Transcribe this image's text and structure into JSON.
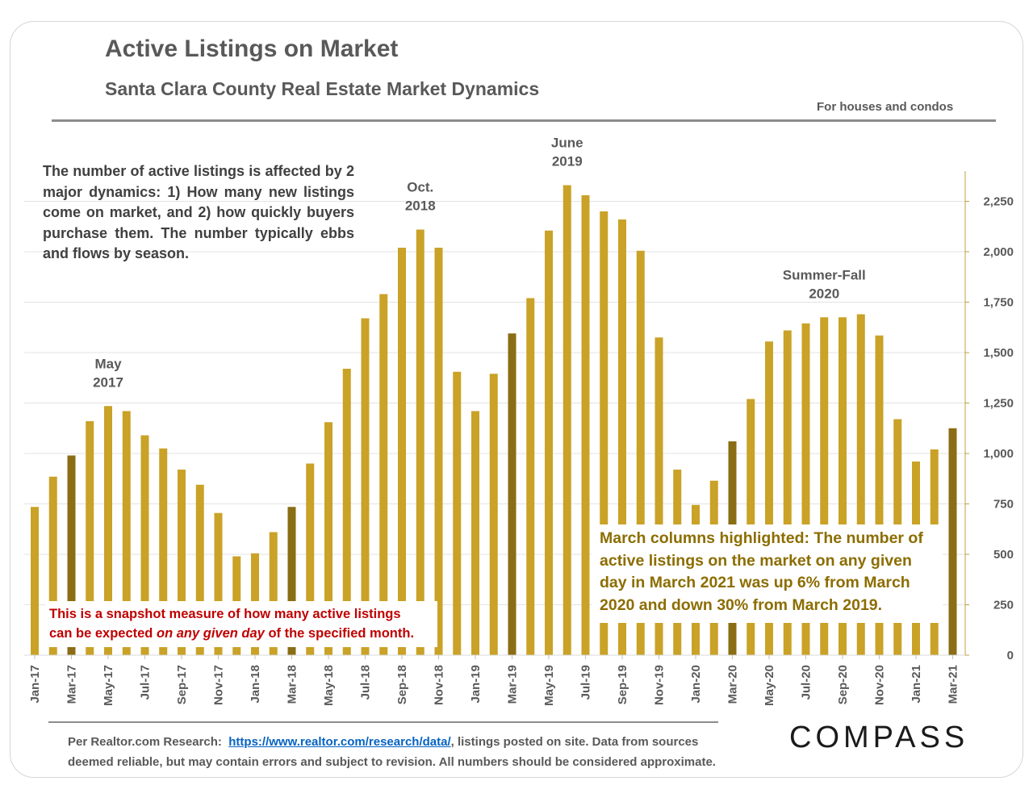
{
  "header": {
    "title": "Active Listings on Market",
    "subtitle": "Santa Clara County Real Estate Market Dynamics",
    "scope": "For houses and condos"
  },
  "notes": {
    "dynamics": "The number of active listings is affected by 2 major dynamics: 1) How many new listings come on market, and 2) how quickly buyers purchase them. The number typically ebbs and flows by season.",
    "snapshot_prefix": "This is a snapshot measure of how many active listings",
    "snapshot_mid": "can be expected ",
    "snapshot_emph": "on any given day",
    "snapshot_suffix": " of the specified month.",
    "march_line1": "March columns highlighted: The number of",
    "march_line2": "active listings on the market on any given",
    "march_line3": "day in March 2021 was up 6% from March",
    "march_line4": "2020 and down 30% from March 2019."
  },
  "footer": {
    "prefix": "Per Realtor.com Research:",
    "link": "https://www.realtor.com/research/data/",
    "suffix": ", listings posted on site. Data from sources",
    "line2": "deemed reliable, but may contain errors and subject to revision. All numbers should be considered approximate."
  },
  "logo": {
    "text": "COMPASS"
  },
  "colors": {
    "bar": "#c9a227",
    "march": "#8a6d14",
    "grid": "#e3e3e3",
    "axis": "#bfa040"
  },
  "chart_data": {
    "type": "bar",
    "title": "Active Listings on Market",
    "ylim": [
      0,
      2400
    ],
    "yticks": [
      0,
      250,
      500,
      750,
      1000,
      1250,
      1500,
      1750,
      2000,
      2250
    ],
    "ytick_labels": [
      "0",
      "250",
      "500",
      "750",
      "1,000",
      "1,250",
      "1,500",
      "1,750",
      "2,000",
      "2,250"
    ],
    "y_axis_side": "right",
    "categories": [
      "Jan-17",
      "Feb-17",
      "Mar-17",
      "Apr-17",
      "May-17",
      "Jun-17",
      "Jul-17",
      "Aug-17",
      "Sep-17",
      "Oct-17",
      "Nov-17",
      "Dec-17",
      "Jan-18",
      "Feb-18",
      "Mar-18",
      "Apr-18",
      "May-18",
      "Jun-18",
      "Jul-18",
      "Aug-18",
      "Sep-18",
      "Oct-18",
      "Nov-18",
      "Dec-18",
      "Jan-19",
      "Feb-19",
      "Mar-19",
      "Apr-19",
      "May-19",
      "Jun-19",
      "Jul-19",
      "Aug-19",
      "Sep-19",
      "Oct-19",
      "Nov-19",
      "Dec-19",
      "Jan-20",
      "Feb-20",
      "Mar-20",
      "Apr-20",
      "May-20",
      "Jun-20",
      "Jul-20",
      "Aug-20",
      "Sep-20",
      "Oct-20",
      "Nov-20",
      "Dec-20",
      "Jan-21",
      "Feb-21",
      "Mar-21"
    ],
    "values": [
      735,
      885,
      990,
      1160,
      1235,
      1210,
      1090,
      1025,
      920,
      845,
      705,
      490,
      505,
      610,
      735,
      950,
      1155,
      1420,
      1670,
      1790,
      2020,
      2110,
      2020,
      1405,
      1210,
      1395,
      1595,
      1770,
      2105,
      2330,
      2280,
      2200,
      2160,
      2005,
      1575,
      920,
      745,
      865,
      1060,
      1270,
      1555,
      1610,
      1645,
      1675,
      1675,
      1690,
      1585,
      1170,
      960,
      1020,
      1125
    ],
    "highlight_categories": [
      "Mar-17",
      "Mar-18",
      "Mar-19",
      "Mar-20",
      "Mar-21"
    ],
    "xtick_labels": [
      "Jan-17",
      "Mar-17",
      "May-17",
      "Jul-17",
      "Sep-17",
      "Nov-17",
      "Jan-18",
      "Mar-18",
      "May-18",
      "Jul-18",
      "Sep-18",
      "Nov-18",
      "Jan-19",
      "Mar-19",
      "May-19",
      "Jul-19",
      "Sep-19",
      "Nov-19",
      "Jan-20",
      "Mar-20",
      "May-20",
      "Jul-20",
      "Sep-20",
      "Nov-20",
      "Jan-21",
      "Mar-21"
    ],
    "annotations": [
      {
        "lines": [
          "May",
          "2017"
        ],
        "category": "May-17",
        "value": 1235
      },
      {
        "lines": [
          "Oct.",
          "2018"
        ],
        "category": "Oct-18",
        "value": 2110
      },
      {
        "lines": [
          "June",
          "2019"
        ],
        "category": "Jun-19",
        "value": 2330
      },
      {
        "lines": [
          "Summer-Fall",
          "2020"
        ],
        "category": "Aug-20",
        "value": 1675
      }
    ],
    "grid": true,
    "legend": "none"
  }
}
